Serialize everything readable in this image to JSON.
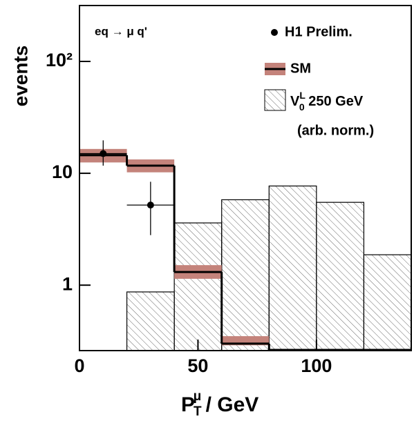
{
  "chart_data": {
    "type": "histogram",
    "annotation": {
      "left": "eq",
      "arrow": "→",
      "right": "μ q'"
    },
    "xlabel": {
      "main": "P",
      "sub": "T",
      "sup": "μ",
      "rest": " / GeV"
    },
    "ylabel": "events",
    "xlim": [
      0,
      140
    ],
    "xticks": [
      0,
      50,
      100
    ],
    "ylim": [
      0.26,
      316
    ],
    "log_y": true,
    "yticks": [
      1,
      10,
      {
        "value": 100,
        "label": "10²"
      }
    ],
    "series": [
      {
        "name": "H1 Prelim.",
        "kind": "points",
        "color": "#000000",
        "x": [
          10,
          30
        ],
        "values": [
          15,
          5.2
        ],
        "x_low": [
          0,
          20
        ],
        "x_high": [
          20,
          40
        ],
        "y_low": [
          11.7,
          2.8
        ],
        "y_high": [
          19.7,
          8.4
        ]
      },
      {
        "name": "SM",
        "kind": "step-band",
        "color": "#000000",
        "band_color": "#c4837b",
        "bins": [
          0,
          20,
          40,
          60,
          80
        ],
        "values": [
          14.5,
          11.7,
          1.31,
          0.3
        ],
        "band_low": [
          12.5,
          10.2,
          1.14,
          0.29
        ],
        "band_high": [
          16.5,
          13.3,
          1.51,
          0.35
        ]
      },
      {
        "name": {
          "main": "V",
          "sup": "L",
          "sub": "0",
          "rest": " 250 GeV",
          "note": "(arb. norm.)"
        },
        "kind": "hatched",
        "color": "#000000",
        "bins": [
          20,
          40,
          60,
          80,
          100,
          120,
          140
        ],
        "values": [
          0.87,
          3.6,
          5.8,
          7.7,
          5.5,
          1.87
        ]
      }
    ]
  }
}
